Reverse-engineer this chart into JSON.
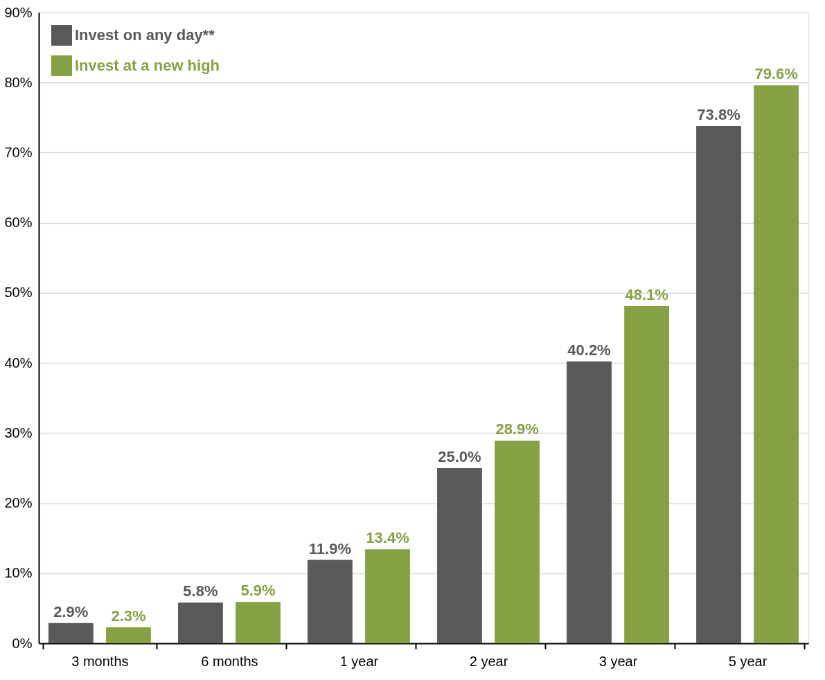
{
  "chart_data": {
    "type": "bar",
    "categories": [
      "3 months",
      "6 months",
      "1 year",
      "2 year",
      "3 year",
      "5 year"
    ],
    "series": [
      {
        "name": "Invest on any day**",
        "color": "#58595b",
        "values": [
          2.9,
          5.8,
          11.9,
          25.0,
          40.2,
          73.8
        ],
        "value_labels": [
          "2.9%",
          "5.8%",
          "11.9%",
          "25.0%",
          "40.2%",
          "73.8%"
        ]
      },
      {
        "name": "Invest at a new high",
        "color": "#86a143",
        "values": [
          2.3,
          5.9,
          13.4,
          28.9,
          48.1,
          79.6
        ],
        "value_labels": [
          "2.3%",
          "5.9%",
          "13.4%",
          "28.9%",
          "48.1%",
          "79.6%"
        ]
      }
    ],
    "ylim": [
      0,
      90
    ],
    "yticks": [
      {
        "value": 0,
        "label": "0%"
      },
      {
        "value": 10,
        "label": "10%"
      },
      {
        "value": 20,
        "label": "20%"
      },
      {
        "value": 30,
        "label": "30%"
      },
      {
        "value": 40,
        "label": "40%"
      },
      {
        "value": 50,
        "label": "50%"
      },
      {
        "value": 60,
        "label": "60%"
      },
      {
        "value": 70,
        "label": "70%"
      },
      {
        "value": 80,
        "label": "80%"
      },
      {
        "value": 90,
        "label": "90%"
      }
    ],
    "grid": "y",
    "legend": "top left"
  }
}
